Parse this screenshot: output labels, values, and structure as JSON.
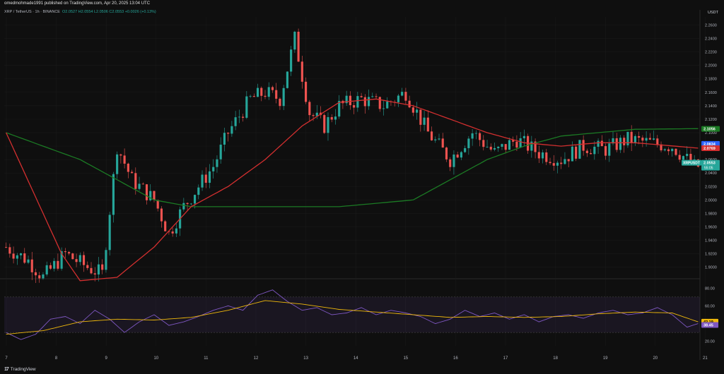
{
  "header": {
    "published": "omedmohmade1991 published on TradingView.com, Apr 20, 2025 13:04 UTC"
  },
  "symbol": {
    "name": "XRP / TetherUS · 1h · BINANCE",
    "ohlc": "O2.0527 H2.0554 L2.0506 C2.0553 +0.0026 (+0.13%)",
    "currency": "USDT"
  },
  "brand": {
    "logo": "17",
    "name": "TradingView"
  },
  "chart_data": {
    "type": "candlestick",
    "ylim": [
      1.885,
      2.272
    ],
    "y_ticks": [
      "2.2600",
      "2.2400",
      "2.2200",
      "2.2000",
      "2.1800",
      "2.1600",
      "2.1400",
      "2.1200",
      "2.1000",
      "2.0800",
      "2.0600",
      "2.0400",
      "2.0200",
      "2.0000",
      "1.9800",
      "1.9600",
      "1.9400",
      "1.9200",
      "1.9000"
    ],
    "x_ticks": [
      "7",
      "8",
      "9",
      "10",
      "11",
      "12",
      "13",
      "14",
      "15",
      "16",
      "17",
      "18",
      "19",
      "20",
      "21"
    ],
    "price_path": [
      [
        0,
        1.93
      ],
      [
        6,
        1.91
      ],
      [
        10,
        1.885
      ],
      [
        16,
        1.92
      ],
      [
        22,
        1.9
      ],
      [
        26,
        1.89
      ],
      [
        30,
        2.08
      ],
      [
        34,
        2.03
      ],
      [
        40,
        2.0
      ],
      [
        44,
        1.95
      ],
      [
        48,
        1.99
      ],
      [
        52,
        2.02
      ],
      [
        56,
        2.05
      ],
      [
        60,
        2.1
      ],
      [
        66,
        2.15
      ],
      [
        70,
        2.16
      ],
      [
        74,
        2.15
      ],
      [
        78,
        2.24
      ],
      [
        82,
        2.13
      ],
      [
        86,
        2.11
      ],
      [
        90,
        2.14
      ],
      [
        96,
        2.15
      ],
      [
        102,
        2.14
      ],
      [
        108,
        2.16
      ],
      [
        114,
        2.1
      ],
      [
        120,
        2.06
      ],
      [
        126,
        2.1
      ],
      [
        132,
        2.07
      ],
      [
        138,
        2.09
      ],
      [
        144,
        2.07
      ],
      [
        150,
        2.06
      ],
      [
        156,
        2.08
      ],
      [
        162,
        2.075
      ],
      [
        168,
        2.09
      ],
      [
        174,
        2.085
      ],
      [
        180,
        2.08
      ],
      [
        186,
        2.05
      ]
    ],
    "ma_slow": {
      "color": "#1b7a24",
      "points": [
        [
          0,
          2.1
        ],
        [
          10,
          2.08
        ],
        [
          20,
          2.06
        ],
        [
          30,
          2.03
        ],
        [
          40,
          2.0
        ],
        [
          50,
          1.99
        ],
        [
          60,
          1.99
        ],
        [
          70,
          1.99
        ],
        [
          80,
          1.99
        ],
        [
          90,
          1.99
        ],
        [
          100,
          1.995
        ],
        [
          110,
          2.0
        ],
        [
          120,
          2.03
        ],
        [
          130,
          2.06
        ],
        [
          140,
          2.08
        ],
        [
          150,
          2.095
        ],
        [
          160,
          2.1
        ],
        [
          170,
          2.105
        ],
        [
          187,
          2.106
        ]
      ]
    },
    "ma_fast": {
      "color": "#d32f2f",
      "points": [
        [
          0,
          2.1
        ],
        [
          5,
          2.04
        ],
        [
          10,
          1.98
        ],
        [
          15,
          1.92
        ],
        [
          20,
          1.88
        ],
        [
          30,
          1.885
        ],
        [
          40,
          1.93
        ],
        [
          50,
          1.99
        ],
        [
          60,
          2.02
        ],
        [
          70,
          2.06
        ],
        [
          80,
          2.11
        ],
        [
          90,
          2.145
        ],
        [
          100,
          2.15
        ],
        [
          110,
          2.14
        ],
        [
          120,
          2.12
        ],
        [
          130,
          2.1
        ],
        [
          140,
          2.085
        ],
        [
          150,
          2.08
        ],
        [
          160,
          2.085
        ],
        [
          170,
          2.085
        ],
        [
          187,
          2.077
        ]
      ]
    },
    "price_labels": [
      {
        "label": "2.1056",
        "value": 2.1056,
        "color": "#1b7a24"
      },
      {
        "label": "2.0834",
        "value": 2.0834,
        "color": "#2962ff"
      },
      {
        "label": "2.0769",
        "value": 2.0769,
        "color": "#d32f2f"
      }
    ],
    "symbol_tag": {
      "name": "XRPUSDT",
      "price": "2.0553",
      "countdown": "55:05",
      "value": 2.0553,
      "color": "#26a69a"
    },
    "rsi": {
      "ylim": [
        15,
        85
      ],
      "ticks": [
        "80.00",
        "60.00",
        "20.00"
      ],
      "band": [
        30,
        70
      ],
      "values_label": [
        {
          "label": "42.19",
          "value": 42.19,
          "color": "#f0b90b"
        },
        {
          "label": "38.45",
          "value": 38.45,
          "color": "#7e57c2"
        }
      ],
      "path": [
        [
          0,
          30
        ],
        [
          4,
          22
        ],
        [
          8,
          28
        ],
        [
          12,
          45
        ],
        [
          16,
          48
        ],
        [
          20,
          40
        ],
        [
          24,
          55
        ],
        [
          28,
          45
        ],
        [
          32,
          30
        ],
        [
          36,
          42
        ],
        [
          40,
          50
        ],
        [
          44,
          38
        ],
        [
          48,
          42
        ],
        [
          52,
          48
        ],
        [
          56,
          55
        ],
        [
          60,
          60
        ],
        [
          64,
          55
        ],
        [
          68,
          72
        ],
        [
          72,
          78
        ],
        [
          76,
          65
        ],
        [
          80,
          55
        ],
        [
          84,
          58
        ],
        [
          88,
          50
        ],
        [
          92,
          52
        ],
        [
          96,
          58
        ],
        [
          100,
          50
        ],
        [
          104,
          55
        ],
        [
          108,
          52
        ],
        [
          112,
          48
        ],
        [
          116,
          40
        ],
        [
          120,
          45
        ],
        [
          124,
          55
        ],
        [
          128,
          48
        ],
        [
          132,
          52
        ],
        [
          136,
          45
        ],
        [
          140,
          50
        ],
        [
          144,
          42
        ],
        [
          148,
          48
        ],
        [
          152,
          50
        ],
        [
          156,
          46
        ],
        [
          160,
          52
        ],
        [
          164,
          55
        ],
        [
          168,
          50
        ],
        [
          172,
          52
        ],
        [
          176,
          58
        ],
        [
          180,
          50
        ],
        [
          184,
          36
        ],
        [
          187,
          40
        ]
      ],
      "signal": [
        [
          0,
          28
        ],
        [
          10,
          32
        ],
        [
          20,
          42
        ],
        [
          30,
          45
        ],
        [
          40,
          44
        ],
        [
          50,
          47
        ],
        [
          60,
          55
        ],
        [
          70,
          66
        ],
        [
          80,
          62
        ],
        [
          90,
          56
        ],
        [
          100,
          53
        ],
        [
          110,
          50
        ],
        [
          120,
          47
        ],
        [
          130,
          48
        ],
        [
          140,
          47
        ],
        [
          150,
          48
        ],
        [
          160,
          51
        ],
        [
          170,
          53
        ],
        [
          180,
          52
        ],
        [
          187,
          42
        ]
      ]
    }
  },
  "colors": {
    "up": "#26a69a",
    "down": "#ef5350",
    "bg": "#0f0f0f",
    "grid": "#1c1c1c",
    "text": "#b2b5be"
  }
}
